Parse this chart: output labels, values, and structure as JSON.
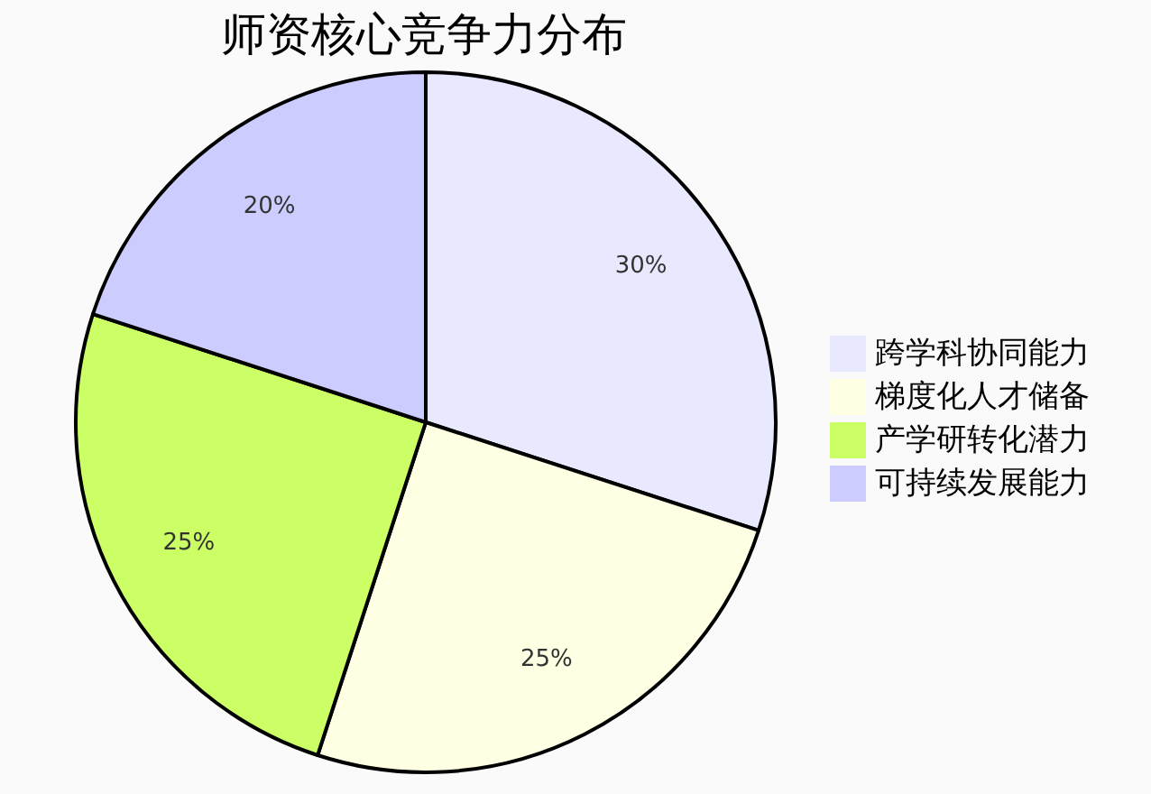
{
  "chart_data": {
    "type": "pie",
    "title": "师资核心竞争力分布",
    "categories": [
      "跨学科协同能力",
      "梯度化人才储备",
      "产学研转化潜力",
      "可持续发展能力"
    ],
    "values": [
      30,
      25,
      25,
      20
    ],
    "colors": [
      "#e8e8ff",
      "#ffffe4",
      "#ccff66",
      "#ccccff"
    ],
    "value_labels": [
      "30%",
      "25%",
      "25%",
      "20%"
    ],
    "legend": "right"
  }
}
